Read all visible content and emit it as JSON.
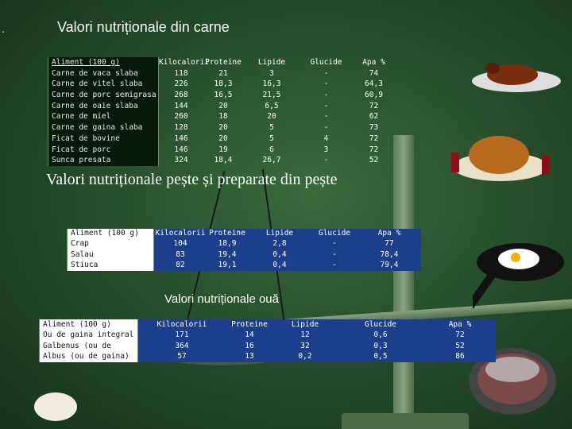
{
  "titles": {
    "meat": "Valori nutriționale din carne",
    "fish": "Valori nutriționale pește și preparate din pește",
    "eggs": "Valori nutriționale ouă"
  },
  "bullet": ".",
  "columns": [
    "Kilocalorii",
    "Proteine",
    "Lipide",
    "Glucide",
    "Apa %"
  ],
  "meat": {
    "header": "Aliment (100 g)",
    "rows": [
      {
        "name": "Carne de vaca slaba",
        "vals": [
          "118",
          "21",
          "3",
          "-",
          "74"
        ]
      },
      {
        "name": "Carne de vitel slaba",
        "vals": [
          "226",
          "18,3",
          "16,3",
          "-",
          "64,3"
        ]
      },
      {
        "name": "Carne de porc semigrasa",
        "vals": [
          "268",
          "16,5",
          "21,5",
          "-",
          "60,9"
        ]
      },
      {
        "name": "Carne de oaie slaba",
        "vals": [
          "144",
          "20",
          "6,5",
          "-",
          "72"
        ]
      },
      {
        "name": "Carne de miel",
        "vals": [
          "260",
          "18",
          "20",
          "-",
          "62"
        ]
      },
      {
        "name": "Carne de gaina slaba",
        "vals": [
          "128",
          "20",
          "5",
          "-",
          "73"
        ]
      },
      {
        "name": "Ficat de bovine",
        "vals": [
          "146",
          "20",
          "5",
          "4",
          "72"
        ]
      },
      {
        "name": "Ficat de porc",
        "vals": [
          "146",
          "19",
          "6",
          "3",
          "72"
        ]
      },
      {
        "name": "Sunca presata",
        "vals": [
          "324",
          "18,4",
          "26,7",
          "-",
          "52"
        ]
      }
    ]
  },
  "fish": {
    "header": "Aliment (100 g)",
    "rows": [
      {
        "name": "Crap",
        "vals": [
          "104",
          "18,9",
          "2,8",
          "-",
          "77"
        ]
      },
      {
        "name": "Salau",
        "vals": [
          "83",
          "19,4",
          "0,4",
          "-",
          "78,4"
        ]
      },
      {
        "name": "Stiuca",
        "vals": [
          "82",
          "19,1",
          "0,4",
          "-",
          "79,4"
        ]
      }
    ]
  },
  "eggs": {
    "header": "Aliment (100 g)",
    "rows": [
      {
        "name": "Ou de gaina integral",
        "vals": [
          "171",
          "14",
          "12",
          "0,6",
          "72"
        ]
      },
      {
        "name": "Galbenus (ou de gaina)",
        "vals": [
          "364",
          "16",
          "32",
          "0,3",
          "52"
        ]
      },
      {
        "name": "Albus (ou de gaina)",
        "vals": [
          "57",
          "13",
          "0,2",
          "0,5",
          "86"
        ]
      }
    ]
  }
}
